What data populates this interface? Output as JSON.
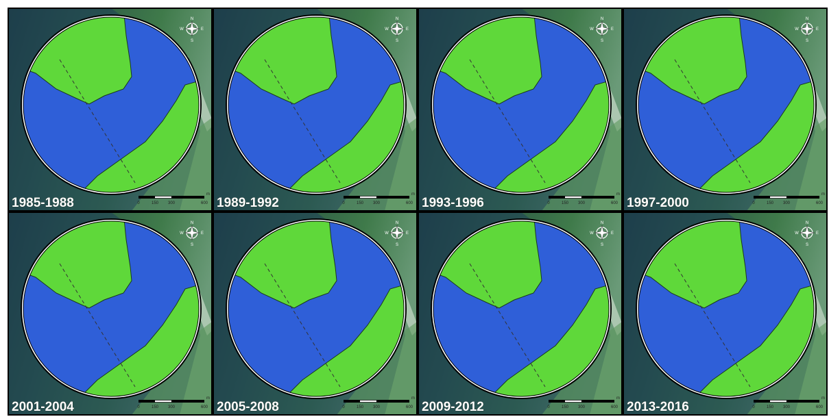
{
  "panels": [
    {
      "label": "1985-1988"
    },
    {
      "label": "1989-1992"
    },
    {
      "label": "1993-1996"
    },
    {
      "label": "1997-2000"
    },
    {
      "label": "2001-2004"
    },
    {
      "label": "2005-2008"
    },
    {
      "label": "2009-2012"
    },
    {
      "label": "2013-2016"
    }
  ],
  "scale": {
    "ticks": [
      "0",
      "150",
      "300",
      "600"
    ],
    "unit": "m"
  },
  "compass": {
    "n": "N",
    "s": "S",
    "e": "E",
    "w": "W"
  }
}
